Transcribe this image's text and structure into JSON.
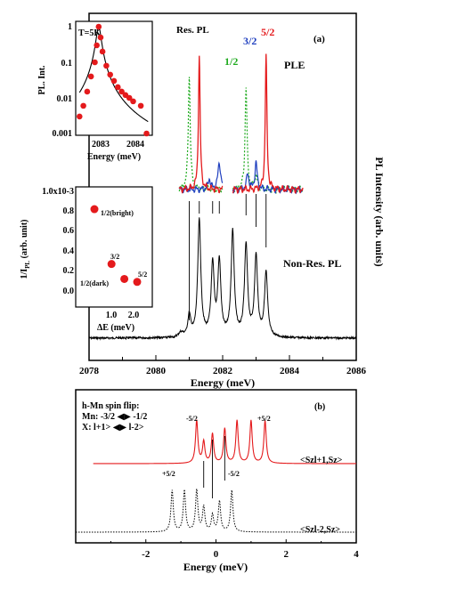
{
  "colors": {
    "black": "#000000",
    "red": "#e41a1c",
    "green": "#1faa1f",
    "blue": "#1f3fbf",
    "frame": "#000000"
  },
  "panel_a": {
    "label": "(a)",
    "y_right_label": "PL Intensity (arb. units)",
    "xlabel": "Energy (meV)",
    "x_ticks": [
      "2078",
      "2080",
      "2082",
      "2084",
      "2086"
    ],
    "labels": {
      "res_pl": "Res. PL",
      "ple": "PLE",
      "nonres_pl": "Non-Res. PL",
      "spin_12": "1/2",
      "spin_32": "3/2",
      "spin_52": "5/2"
    }
  },
  "inset_top": {
    "temp": "T=5K",
    "ylabel": "PL. Int.",
    "xlabel": "Energy (meV)",
    "y_ticks": [
      "1",
      "0.1",
      "0.01",
      "0.001"
    ],
    "x_ticks": [
      "2083",
      "2084"
    ]
  },
  "inset_bottom": {
    "ylabel_main": "1/I",
    "ylabel_sub": "PL",
    "ylabel_tail": " (arb. unit)",
    "xlabel": "ΔE (meV)",
    "y_ticks": [
      "1.0x10-3",
      "0.8",
      "0.6",
      "0.4",
      "0.2",
      "0.0"
    ],
    "x_ticks": [
      "1.0",
      "2.0"
    ],
    "point_labels": [
      "1/2(bright)",
      "3/2",
      "1/2(dark)",
      "5/2"
    ]
  },
  "panel_b": {
    "label": "(b)",
    "title": "h-Mn spin flip:",
    "mn_line": "Mn: -3/2 ◀▶ -1/2",
    "x_line": "X: l+1> ◀▶ l-2>",
    "xlabel": "Energy (meV)",
    "x_ticks": [
      "-2",
      "0",
      "2",
      "4"
    ],
    "red_label": "<Szl+1,Sz>",
    "black_label": "<Szl-2,Sz>",
    "red_end_left": "-5/2",
    "red_end_right": "+5/2",
    "black_end_left": "+5/2",
    "black_end_right": "-5/2"
  },
  "chart_data": [
    {
      "type": "line",
      "name": "panel_a",
      "xlabel": "Energy (meV)",
      "ylabel": "PL Intensity (arb. units)",
      "xlim": [
        2078,
        2086
      ],
      "series": [
        {
          "name": "Non-Res. PL",
          "color": "black",
          "style": "solid",
          "peaks": [
            2081.0,
            2081.3,
            2081.7,
            2081.9,
            2082.3,
            2082.7,
            2083.0,
            2083.3
          ],
          "heights": [
            0.15,
            0.82,
            0.5,
            0.52,
            0.74,
            0.64,
            0.56,
            0.45
          ]
        },
        {
          "name": "Res. PL",
          "color": "red",
          "style": "solid",
          "peaks": [
            2081.3
          ],
          "heights": [
            1.0
          ]
        },
        {
          "name": "PLE 1/2",
          "color": "green",
          "style": "dotted",
          "peaks": [
            2081.0,
            2082.7
          ],
          "heights": [
            0.85,
            0.77
          ]
        },
        {
          "name": "PLE 3/2",
          "color": "blue",
          "style": "solid",
          "peaks": [
            2081.9,
            2083.0
          ],
          "heights": [
            0.2,
            0.2
          ]
        },
        {
          "name": "PLE 5/2",
          "color": "red",
          "style": "solid",
          "peaks": [
            2083.3
          ],
          "heights": [
            1.0
          ]
        }
      ]
    },
    {
      "type": "scatter",
      "name": "inset_top",
      "xlabel": "Energy (meV)",
      "ylabel": "PL. Int.",
      "xlim": [
        2082.5,
        2084.5
      ],
      "ylim": [
        0.001,
        1
      ],
      "yscale": "log",
      "points": [
        [
          2082.6,
          0.003
        ],
        [
          2082.7,
          0.006
        ],
        [
          2082.8,
          0.015
        ],
        [
          2082.9,
          0.04
        ],
        [
          2083.0,
          0.1
        ],
        [
          2083.05,
          0.3
        ],
        [
          2083.1,
          1.0
        ],
        [
          2083.15,
          0.5
        ],
        [
          2083.2,
          0.2
        ],
        [
          2083.3,
          0.08
        ],
        [
          2083.4,
          0.045
        ],
        [
          2083.5,
          0.03
        ],
        [
          2083.6,
          0.02
        ],
        [
          2083.7,
          0.015
        ],
        [
          2083.8,
          0.012
        ],
        [
          2083.9,
          0.01
        ],
        [
          2084.0,
          0.008
        ],
        [
          2084.2,
          0.006
        ],
        [
          2084.35,
          0.001
        ]
      ]
    },
    {
      "type": "scatter",
      "name": "inset_bottom",
      "xlabel": "ΔE (meV)",
      "ylabel": "1/IPL (arb. unit)",
      "xlim": [
        0,
        2.5
      ],
      "ylim": [
        -0.1,
        1.1
      ],
      "points": [
        {
          "x": 0.5,
          "y": 0.83,
          "label": "1/2(bright)"
        },
        {
          "x": 1.1,
          "y": 0.28,
          "label": "3/2"
        },
        {
          "x": 1.55,
          "y": 0.13,
          "label": "1/2(dark)"
        },
        {
          "x": 2.0,
          "y": 0.1,
          "label": "5/2"
        }
      ]
    },
    {
      "type": "line",
      "name": "panel_b",
      "xlabel": "Energy (meV)",
      "xlim": [
        -4,
        4
      ],
      "series": [
        {
          "name": "<Szl+1,Sz>",
          "color": "red",
          "style": "solid",
          "peaks": [
            -0.55,
            -0.35,
            -0.1,
            0.25,
            0.6,
            1.0,
            1.4
          ],
          "heights": [
            0.8,
            0.4,
            0.55,
            0.65,
            0.8,
            0.8,
            0.8
          ]
        },
        {
          "name": "<Szl-2,Sz>",
          "color": "black",
          "style": "dotted",
          "peaks": [
            -1.25,
            -0.9,
            -0.55,
            -0.35,
            -0.1,
            0.1,
            0.45
          ],
          "heights": [
            0.75,
            0.75,
            0.75,
            0.45,
            0.3,
            0.55,
            0.75
          ]
        }
      ]
    }
  ]
}
